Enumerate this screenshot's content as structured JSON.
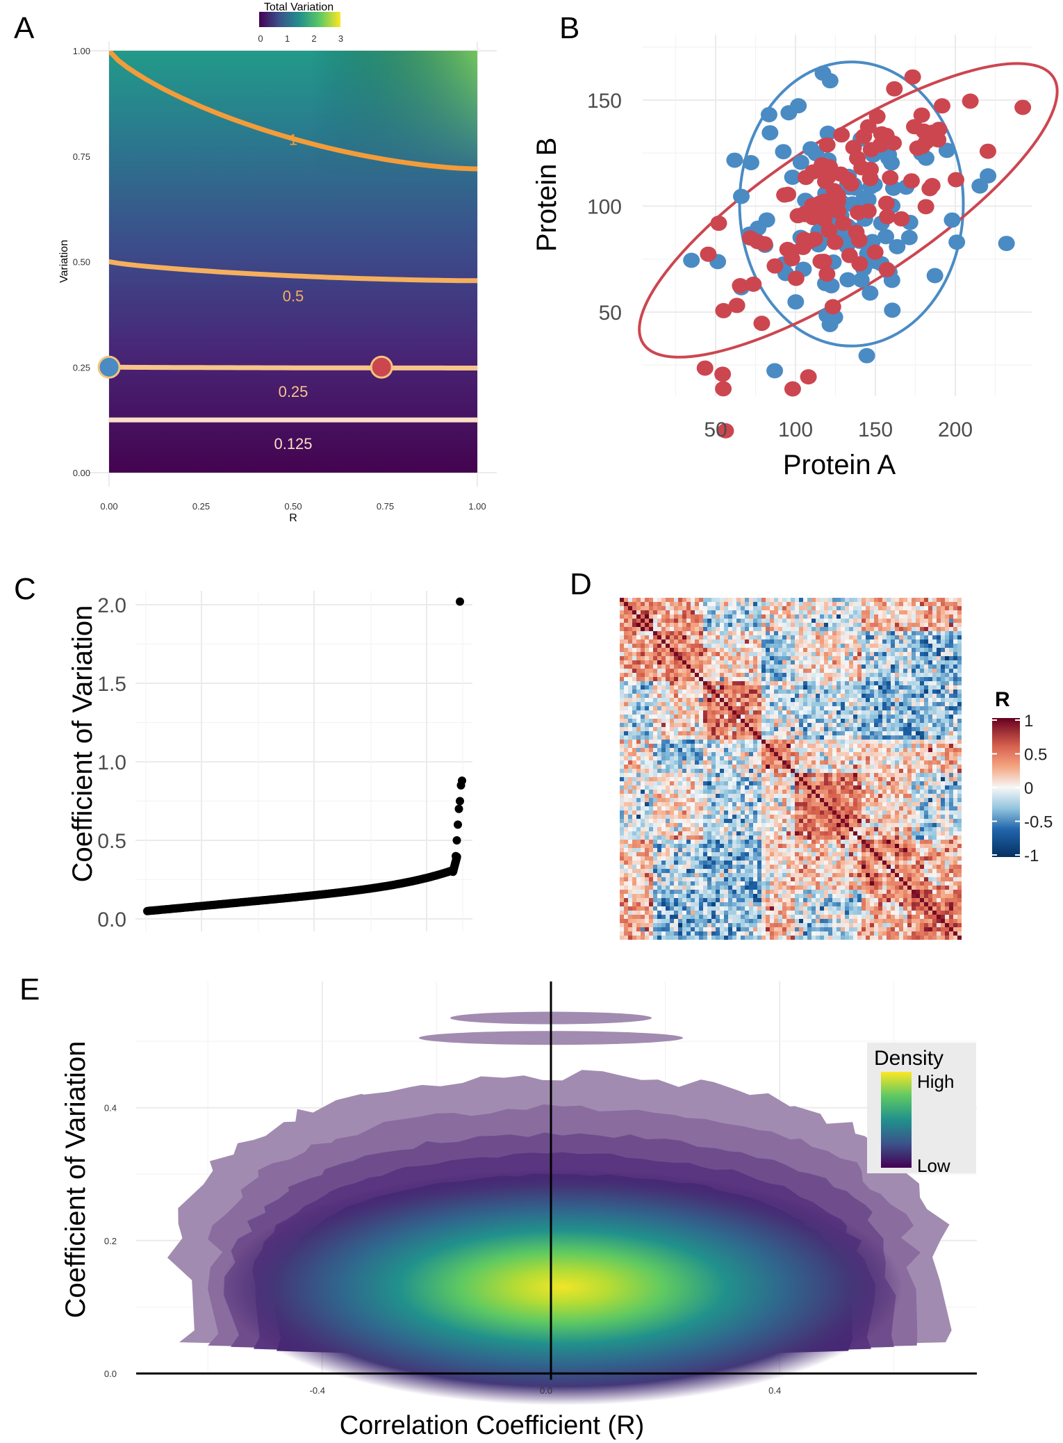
{
  "panel_labels": [
    "A",
    "B",
    "C",
    "D",
    "E"
  ],
  "colors": {
    "contour": "#f5a04a",
    "blue": "#4a8bc4",
    "red": "#cc4650",
    "neg": "#2166ac",
    "pos": "#b2182b"
  },
  "chart_data": [
    {
      "panel": "A",
      "type": "heatmap",
      "xlabel": "R",
      "ylabel": "Variation",
      "xlim": [
        0,
        1
      ],
      "ylim": [
        0,
        1
      ],
      "x_ticks": [
        "0.00",
        "0.25",
        "0.50",
        "0.75",
        "1.00"
      ],
      "y_ticks": [
        "0.00",
        "0.25",
        "0.50",
        "0.75",
        "1.00"
      ],
      "legend_title": "Total Variation",
      "legend_position": "top",
      "legend_ticks": [
        "0",
        "1",
        "2",
        "3"
      ],
      "contours": [
        {
          "label": "1",
          "level": 1,
          "y_at_r0": 1.0,
          "y_at_r1": 0.72
        },
        {
          "label": "0.5",
          "level": 0.5,
          "y_at_r0": 0.5,
          "y_at_r1": 0.455
        },
        {
          "label": "0.25",
          "level": 0.25,
          "y_at_r0": 0.25,
          "y_at_r1": 0.248
        },
        {
          "label": "0.125",
          "level": 0.125,
          "y_at_r0": 0.125,
          "y_at_r1": 0.125
        }
      ],
      "points": [
        {
          "r": 0.0,
          "v": 0.25,
          "color": "blue"
        },
        {
          "r": 0.74,
          "v": 0.25,
          "color": "red"
        }
      ]
    },
    {
      "panel": "B",
      "type": "scatter",
      "xlabel": "Protein A",
      "ylabel": "Protein B",
      "x_ticks": [
        "50",
        "100",
        "150",
        "200"
      ],
      "y_ticks": [
        "50",
        "100",
        "150"
      ],
      "xlim": [
        20,
        245
      ],
      "ylim": [
        20,
        180
      ],
      "series": [
        {
          "color": "blue",
          "correlation": 0.0,
          "ellipse": {
            "cx": 135,
            "cy": 101,
            "rx": 70,
            "ry": 67,
            "angle_deg": 0
          }
        },
        {
          "color": "red",
          "correlation": 0.74,
          "ellipse": {
            "cx": 133,
            "cy": 98,
            "rx": 150,
            "ry": 46,
            "angle_deg": 33
          }
        }
      ]
    },
    {
      "panel": "C",
      "type": "scatter",
      "ylabel": "Coefficient of Variation",
      "y_ticks": [
        "0.0",
        "0.5",
        "1.0",
        "1.5",
        "2.0"
      ],
      "ylim": [
        0,
        2.05
      ],
      "max_value": 2.02,
      "description_values": {
        "start": 0.04,
        "mid": 0.14,
        "knee": 0.3,
        "tail": [
          0.4,
          0.5,
          0.6,
          0.7,
          0.75,
          0.85,
          0.88
        ]
      }
    },
    {
      "panel": "D",
      "type": "heatmap",
      "legend_title": "R",
      "legend_ticks": [
        "1",
        "0.5",
        "0",
        "-0.5",
        "-1"
      ],
      "range": [
        -1,
        1
      ]
    },
    {
      "panel": "E",
      "type": "area",
      "xlabel": "Correlation Coefficient (R)",
      "ylabel": "Coefficient of Variation",
      "x_ticks": [
        "-0.4",
        "0.0",
        "0.4"
      ],
      "y_ticks": [
        "0.0",
        "0.2",
        "0.4"
      ],
      "xlim": [
        -0.72,
        0.74
      ],
      "ylim": [
        -0.01,
        0.58
      ],
      "legend_title": "Density",
      "legend_high": "High",
      "legend_low": "Low",
      "density_peak": {
        "r": 0.02,
        "cv": 0.1
      }
    }
  ]
}
